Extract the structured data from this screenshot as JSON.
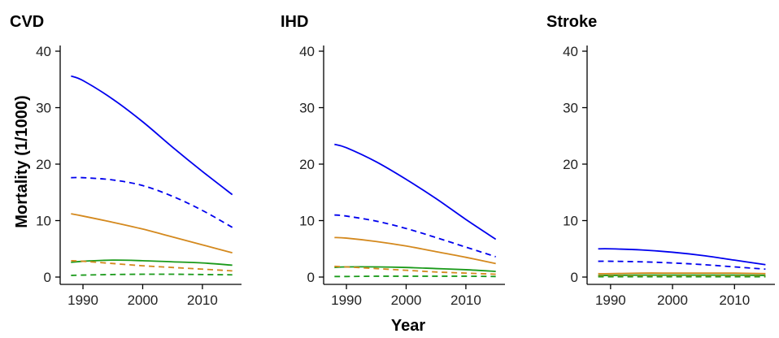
{
  "chart_data": [
    {
      "type": "line",
      "title": "CVD",
      "xlim": [
        1987,
        2016
      ],
      "ylim": [
        0,
        40
      ],
      "xticks": [
        1990,
        2000,
        2010
      ],
      "yticks": [
        0,
        10,
        20,
        30,
        40
      ],
      "x": [
        1988,
        1990,
        1995,
        2000,
        2005,
        2010,
        2015
      ],
      "series": [
        {
          "color": "#0000EE",
          "dash": "solid",
          "values": [
            35.6,
            34.8,
            31.5,
            27.5,
            23.0,
            18.7,
            14.6
          ]
        },
        {
          "color": "#0000EE",
          "dash": "dashed",
          "values": [
            17.6,
            17.6,
            17.2,
            16.2,
            14.3,
            11.8,
            8.8
          ]
        },
        {
          "color": "#D4891E",
          "dash": "solid",
          "values": [
            11.2,
            10.8,
            9.7,
            8.5,
            7.1,
            5.7,
            4.3
          ]
        },
        {
          "color": "#1A9A1A",
          "dash": "solid",
          "values": [
            2.6,
            2.8,
            3.0,
            2.9,
            2.7,
            2.5,
            2.1
          ]
        },
        {
          "color": "#D4891E",
          "dash": "dashed",
          "values": [
            2.9,
            2.8,
            2.4,
            2.0,
            1.7,
            1.4,
            1.1
          ]
        },
        {
          "color": "#1A9A1A",
          "dash": "dashed",
          "values": [
            0.3,
            0.35,
            0.45,
            0.5,
            0.5,
            0.45,
            0.4
          ]
        }
      ]
    },
    {
      "type": "line",
      "title": "IHD",
      "xlim": [
        1987,
        2016
      ],
      "ylim": [
        0,
        40
      ],
      "xticks": [
        1990,
        2000,
        2010
      ],
      "yticks": [
        0,
        10,
        20,
        30,
        40
      ],
      "x": [
        1988,
        1990,
        1995,
        2000,
        2005,
        2010,
        2015
      ],
      "series": [
        {
          "color": "#0000EE",
          "dash": "solid",
          "values": [
            23.5,
            22.9,
            20.4,
            17.3,
            13.9,
            10.2,
            6.7
          ]
        },
        {
          "color": "#0000EE",
          "dash": "dashed",
          "values": [
            11.0,
            10.8,
            9.9,
            8.6,
            7.0,
            5.3,
            3.6
          ]
        },
        {
          "color": "#D4891E",
          "dash": "solid",
          "values": [
            7.0,
            6.9,
            6.3,
            5.5,
            4.5,
            3.5,
            2.4
          ]
        },
        {
          "color": "#1A9A1A",
          "dash": "solid",
          "values": [
            1.7,
            1.8,
            1.8,
            1.7,
            1.5,
            1.3,
            1.0
          ]
        },
        {
          "color": "#D4891E",
          "dash": "dashed",
          "values": [
            1.9,
            1.8,
            1.5,
            1.2,
            0.9,
            0.7,
            0.5
          ]
        },
        {
          "color": "#1A9A1A",
          "dash": "dashed",
          "values": [
            0.1,
            0.1,
            0.15,
            0.15,
            0.15,
            0.15,
            0.1
          ]
        }
      ]
    },
    {
      "type": "line",
      "title": "Stroke",
      "xlim": [
        1987,
        2016
      ],
      "ylim": [
        0,
        40
      ],
      "xticks": [
        1990,
        2000,
        2010
      ],
      "yticks": [
        0,
        10,
        20,
        30,
        40
      ],
      "x": [
        1988,
        1990,
        1995,
        2000,
        2005,
        2010,
        2015
      ],
      "series": [
        {
          "color": "#0000EE",
          "dash": "solid",
          "values": [
            5.0,
            5.0,
            4.8,
            4.4,
            3.8,
            3.0,
            2.2
          ]
        },
        {
          "color": "#0000EE",
          "dash": "dashed",
          "values": [
            2.8,
            2.8,
            2.7,
            2.5,
            2.2,
            1.8,
            1.4
          ]
        },
        {
          "color": "#D4891E",
          "dash": "solid",
          "values": [
            0.6,
            0.6,
            0.7,
            0.7,
            0.7,
            0.7,
            0.6
          ]
        },
        {
          "color": "#1A9A1A",
          "dash": "solid",
          "values": [
            0.3,
            0.3,
            0.35,
            0.35,
            0.35,
            0.35,
            0.3
          ]
        },
        {
          "color": "#D4891E",
          "dash": "dashed",
          "values": [
            0.2,
            0.2,
            0.2,
            0.2,
            0.2,
            0.2,
            0.15
          ]
        },
        {
          "color": "#1A9A1A",
          "dash": "dashed",
          "values": [
            0.05,
            0.05,
            0.05,
            0.05,
            0.05,
            0.05,
            0.05
          ]
        }
      ]
    }
  ],
  "figure": {
    "ylabel": "Mortality (1/1000)",
    "xlabel": "Year"
  }
}
